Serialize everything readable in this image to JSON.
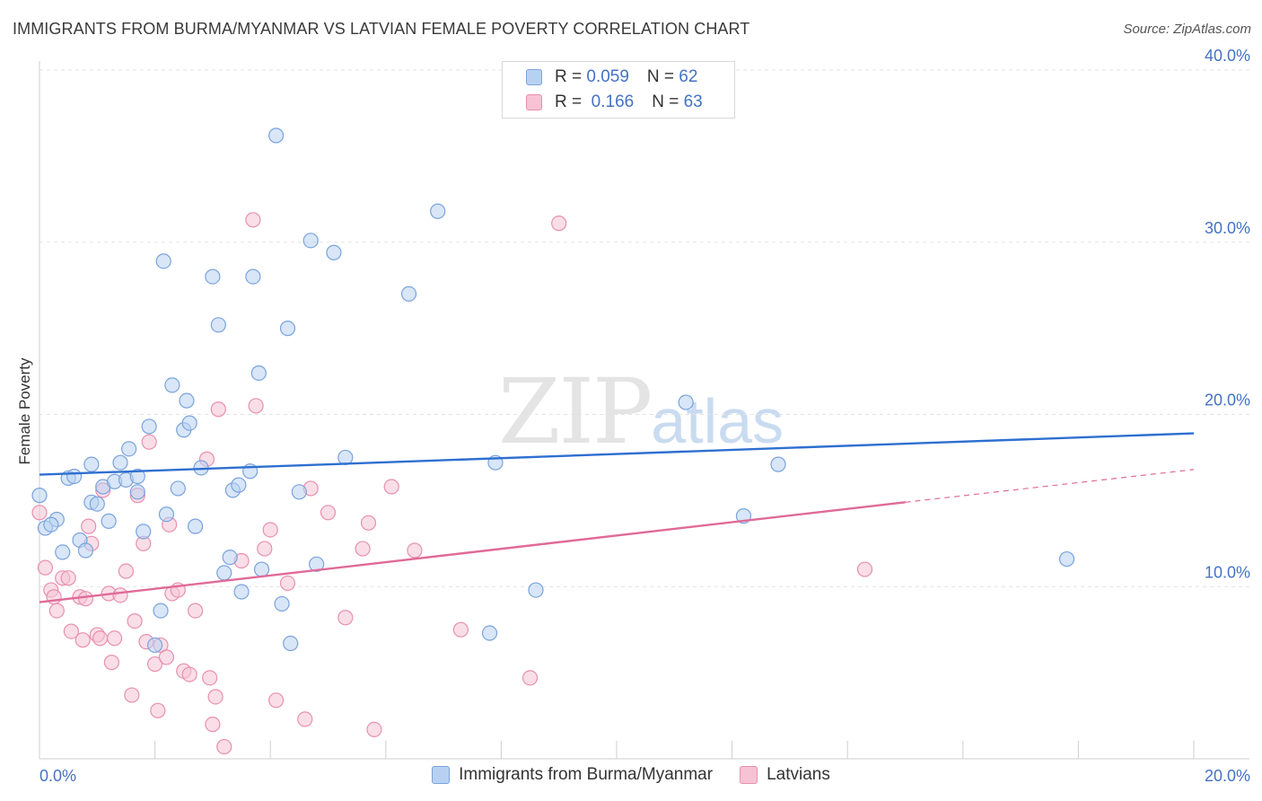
{
  "header": {
    "title": "IMMIGRANTS FROM BURMA/MYANMAR VS LATVIAN FEMALE POVERTY CORRELATION CHART",
    "source": "Source: ZipAtlas.com"
  },
  "watermark": {
    "zip": "ZIP",
    "atlas": "atlas"
  },
  "legend": {
    "rows": [
      {
        "r_label": "R = ",
        "r_value": "0.059",
        "n_label": "N = ",
        "n_value": "62"
      },
      {
        "r_label": "R = ",
        "r_value": " 0.166",
        "n_label": "N = ",
        "n_value": "63"
      }
    ]
  },
  "colors": {
    "blue_fill": "#b8d1f3",
    "blue_stroke": "#7aa3dc",
    "blue_line": "#2e6fd0",
    "pink_fill": "#f6c3d4",
    "pink_stroke": "#e890ae",
    "pink_line": "#e06a98",
    "tick_text": "#4472c4",
    "grid": "#e3e3e3"
  },
  "chart_data": {
    "type": "scatter",
    "title": "IMMIGRANTS FROM BURMA/MYANMAR VS LATVIAN FEMALE POVERTY CORRELATION CHART",
    "xlabel": "",
    "ylabel": "Female Poverty",
    "xlim": [
      0,
      20
    ],
    "ylim": [
      0,
      40
    ],
    "x_ticks": [
      "0.0%",
      "20.0%"
    ],
    "y_ticks": [
      {
        "value": 10,
        "label": "10.0%"
      },
      {
        "value": 20,
        "label": "20.0%"
      },
      {
        "value": 30,
        "label": "30.0%"
      },
      {
        "value": 40,
        "label": "40.0%"
      }
    ],
    "grid": true,
    "legend_position": "top-center",
    "series": [
      {
        "name": "Immigrants from Burma/Myanmar",
        "color": "#b8d1f3",
        "trend": {
          "x": [
            0,
            20
          ],
          "y": [
            16.5,
            18.9
          ]
        },
        "points": [
          [
            0.0,
            15.3
          ],
          [
            0.1,
            13.4
          ],
          [
            0.3,
            13.9
          ],
          [
            0.2,
            13.6
          ],
          [
            0.4,
            12.0
          ],
          [
            0.5,
            16.3
          ],
          [
            0.6,
            16.4
          ],
          [
            0.7,
            12.7
          ],
          [
            0.8,
            12.1
          ],
          [
            0.9,
            17.1
          ],
          [
            0.9,
            14.9
          ],
          [
            1.0,
            14.8
          ],
          [
            1.1,
            15.8
          ],
          [
            1.2,
            13.8
          ],
          [
            1.3,
            16.1
          ],
          [
            1.4,
            17.2
          ],
          [
            1.5,
            16.2
          ],
          [
            1.55,
            18.0
          ],
          [
            1.7,
            16.4
          ],
          [
            1.7,
            15.5
          ],
          [
            1.8,
            13.2
          ],
          [
            1.9,
            19.3
          ],
          [
            2.0,
            6.6
          ],
          [
            2.1,
            8.6
          ],
          [
            2.15,
            28.9
          ],
          [
            2.2,
            14.2
          ],
          [
            2.3,
            21.7
          ],
          [
            2.4,
            15.7
          ],
          [
            2.5,
            19.1
          ],
          [
            2.55,
            20.8
          ],
          [
            2.6,
            19.5
          ],
          [
            2.7,
            13.5
          ],
          [
            2.8,
            16.9
          ],
          [
            3.0,
            28.0
          ],
          [
            3.1,
            25.2
          ],
          [
            3.2,
            10.8
          ],
          [
            3.3,
            11.7
          ],
          [
            3.35,
            15.6
          ],
          [
            3.45,
            15.9
          ],
          [
            3.5,
            9.7
          ],
          [
            3.65,
            16.7
          ],
          [
            3.7,
            28.0
          ],
          [
            3.8,
            22.4
          ],
          [
            3.85,
            11.0
          ],
          [
            4.1,
            36.2
          ],
          [
            4.2,
            9.0
          ],
          [
            4.3,
            25.0
          ],
          [
            4.35,
            6.7
          ],
          [
            4.5,
            15.5
          ],
          [
            4.7,
            30.1
          ],
          [
            4.8,
            11.3
          ],
          [
            5.1,
            29.4
          ],
          [
            5.3,
            17.5
          ],
          [
            6.4,
            27.0
          ],
          [
            6.9,
            31.8
          ],
          [
            7.8,
            7.3
          ],
          [
            7.9,
            17.2
          ],
          [
            8.6,
            9.8
          ],
          [
            11.2,
            20.7
          ],
          [
            12.2,
            14.1
          ],
          [
            12.8,
            17.1
          ],
          [
            17.8,
            11.6
          ]
        ]
      },
      {
        "name": "Latvians",
        "color": "#f6c3d4",
        "trend": {
          "x": [
            0,
            15
          ],
          "y": [
            9.1,
            14.9
          ]
        },
        "trend_ext": {
          "x": [
            15,
            20
          ],
          "y": [
            14.9,
            16.8
          ]
        },
        "points": [
          [
            0.0,
            14.3
          ],
          [
            0.1,
            11.1
          ],
          [
            0.2,
            9.8
          ],
          [
            0.25,
            9.4
          ],
          [
            0.3,
            8.6
          ],
          [
            0.4,
            10.5
          ],
          [
            0.5,
            10.5
          ],
          [
            0.55,
            7.4
          ],
          [
            0.7,
            9.4
          ],
          [
            0.75,
            6.9
          ],
          [
            0.8,
            9.3
          ],
          [
            0.85,
            13.5
          ],
          [
            0.9,
            12.5
          ],
          [
            1.0,
            7.2
          ],
          [
            1.05,
            7.0
          ],
          [
            1.1,
            15.6
          ],
          [
            1.2,
            9.6
          ],
          [
            1.25,
            5.6
          ],
          [
            1.3,
            7.0
          ],
          [
            1.4,
            9.5
          ],
          [
            1.5,
            10.9
          ],
          [
            1.6,
            3.7
          ],
          [
            1.65,
            8.0
          ],
          [
            1.7,
            15.3
          ],
          [
            1.8,
            12.5
          ],
          [
            1.85,
            6.8
          ],
          [
            1.9,
            18.4
          ],
          [
            2.0,
            5.5
          ],
          [
            2.05,
            2.8
          ],
          [
            2.1,
            6.6
          ],
          [
            2.2,
            5.9
          ],
          [
            2.25,
            13.6
          ],
          [
            2.3,
            9.6
          ],
          [
            2.4,
            9.8
          ],
          [
            2.5,
            5.1
          ],
          [
            2.6,
            4.9
          ],
          [
            2.7,
            8.6
          ],
          [
            2.9,
            17.4
          ],
          [
            2.95,
            4.7
          ],
          [
            3.0,
            2.0
          ],
          [
            3.05,
            3.6
          ],
          [
            3.1,
            20.3
          ],
          [
            3.2,
            0.7
          ],
          [
            3.5,
            11.5
          ],
          [
            3.7,
            31.3
          ],
          [
            3.75,
            20.5
          ],
          [
            3.9,
            12.2
          ],
          [
            4.0,
            13.3
          ],
          [
            4.1,
            3.4
          ],
          [
            4.3,
            10.2
          ],
          [
            4.6,
            2.3
          ],
          [
            4.7,
            15.7
          ],
          [
            5.0,
            14.3
          ],
          [
            5.3,
            8.2
          ],
          [
            5.6,
            12.2
          ],
          [
            5.7,
            13.7
          ],
          [
            5.8,
            1.7
          ],
          [
            6.1,
            15.8
          ],
          [
            6.5,
            12.1
          ],
          [
            7.3,
            7.5
          ],
          [
            8.5,
            4.7
          ],
          [
            9.0,
            31.1
          ],
          [
            14.3,
            11.0
          ]
        ]
      }
    ]
  },
  "bottom_legend": [
    {
      "label": "Immigrants from Burma/Myanmar"
    },
    {
      "label": "Latvians"
    }
  ]
}
